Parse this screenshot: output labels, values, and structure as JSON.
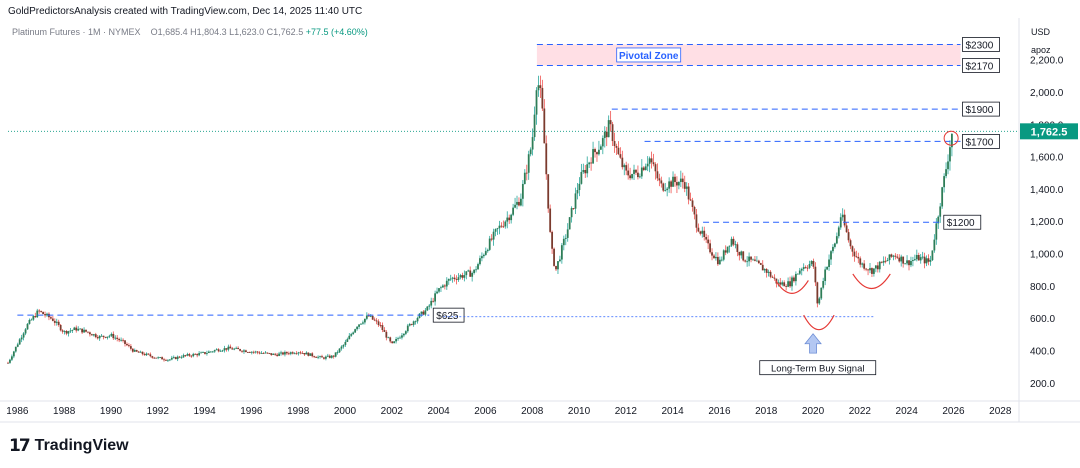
{
  "header": {
    "attribution": "GoldPredictorsAnalysis created with TradingView.com, Dec 14, 2025 11:40 UTC",
    "symbol": "Platinum Futures · 1M · NYMEX",
    "ohlc": "O1,685.4  H1,804.3  L1,623.0  C1,762.5",
    "change": "+77.5 (+4.60%)"
  },
  "price_scale": {
    "currency": "USD",
    "label": "apoz"
  },
  "footer": {
    "logo_mark": "17",
    "brand": "TradingView"
  },
  "colors": {
    "up": "#26a69a",
    "down": "#ef5350",
    "body_up": "#2e7d57",
    "body_down": "#7b3b2e",
    "level_line": "#2962ff",
    "zone_fill": "#ffd9e0",
    "current_price": "#089981",
    "arc": "#e53935"
  },
  "chart_data": {
    "type": "candlestick",
    "interval": "1M",
    "x_axis": {
      "tick_labels": [
        "1986",
        "1988",
        "1990",
        "1992",
        "1994",
        "1996",
        "1998",
        "2000",
        "2002",
        "2004",
        "2006",
        "2008",
        "2010",
        "2012",
        "2014",
        "2016",
        "2018",
        "2020",
        "2022",
        "2024",
        "2026",
        "2028"
      ],
      "range": [
        1985.6,
        2028.8
      ]
    },
    "y_axis": {
      "tick_labels": [
        "200.0",
        "400.0",
        "600.0",
        "800.0",
        "1,000.0",
        "1,200.0",
        "1,400.0",
        "1,600.0",
        "1,800.0",
        "2,000.0",
        "2,200.0"
      ],
      "range": [
        100,
        2340
      ],
      "scale": "linear",
      "position": "right"
    },
    "current_price": {
      "value": 1762.5,
      "label": "1,762.5"
    },
    "levels": [
      {
        "value": 2300,
        "label": "$2300",
        "x_start": 2008.2,
        "x_end": 2026.3
      },
      {
        "value": 2170,
        "label": "$2170",
        "x_start": 2008.2,
        "x_end": 2026.3
      },
      {
        "value": 1900,
        "label": "$1900",
        "x_start": 2011.4,
        "x_end": 2026.3
      },
      {
        "value": 1700,
        "label": "$1700",
        "x_start": 2012.8,
        "x_end": 2026.3
      },
      {
        "value": 1200,
        "label": "$1200",
        "x_start": 2015.3,
        "x_end": 2025.5
      },
      {
        "value": 625,
        "label": "$625",
        "x_start": 1986.0,
        "x_end": 2003.6
      }
    ],
    "support_line": {
      "value": 615,
      "x_start": 2004.2,
      "x_end": 2022.6
    },
    "zone": {
      "label": "Pivotal Zone",
      "from": 2170,
      "to": 2300,
      "x_start": 2008.2,
      "x_end": 2026.3
    },
    "annotations": [
      {
        "text": "Long-Term Buy Signal",
        "x": 2020.2,
        "y": 300
      }
    ],
    "arcs": [
      {
        "x_start": 2018.4,
        "x_end": 2019.8,
        "y_top": 840,
        "y_bottom": 760
      },
      {
        "x_start": 2019.6,
        "x_end": 2020.9,
        "y_top": 625,
        "y_bottom": 535
      },
      {
        "x_start": 2021.7,
        "x_end": 2023.3,
        "y_top": 880,
        "y_bottom": 790
      }
    ],
    "circle": {
      "x": 2025.9,
      "y": 1720
    },
    "arrow": {
      "x": 2020.0,
      "y_from": 390,
      "y_to": 510
    },
    "anchors": [
      [
        1985.6,
        330
      ],
      [
        1986.4,
        560
      ],
      [
        1986.9,
        650
      ],
      [
        1987.5,
        600
      ],
      [
        1988.0,
        520
      ],
      [
        1988.5,
        540
      ],
      [
        1989.0,
        520
      ],
      [
        1989.5,
        490
      ],
      [
        1990.0,
        500
      ],
      [
        1990.5,
        460
      ],
      [
        1991.0,
        400
      ],
      [
        1991.5,
        380
      ],
      [
        1992.0,
        360
      ],
      [
        1992.5,
        350
      ],
      [
        1993.0,
        370
      ],
      [
        1993.5,
        380
      ],
      [
        1994.0,
        390
      ],
      [
        1994.5,
        410
      ],
      [
        1995.0,
        420
      ],
      [
        1995.5,
        410
      ],
      [
        1996.0,
        400
      ],
      [
        1996.5,
        390
      ],
      [
        1997.0,
        380
      ],
      [
        1997.5,
        390
      ],
      [
        1998.0,
        400
      ],
      [
        1998.5,
        380
      ],
      [
        1999.0,
        360
      ],
      [
        1999.5,
        370
      ],
      [
        2000.0,
        450
      ],
      [
        2000.5,
        560
      ],
      [
        2001.0,
        620
      ],
      [
        2001.5,
        560
      ],
      [
        2002.0,
        440
      ],
      [
        2002.5,
        520
      ],
      [
        2003.0,
        600
      ],
      [
        2003.5,
        660
      ],
      [
        2004.0,
        780
      ],
      [
        2004.5,
        850
      ],
      [
        2005.0,
        870
      ],
      [
        2005.5,
        890
      ],
      [
        2006.0,
        1030
      ],
      [
        2006.5,
        1150
      ],
      [
        2007.0,
        1240
      ],
      [
        2007.5,
        1350
      ],
      [
        2008.0,
        1700
      ],
      [
        2008.2,
        2100
      ],
      [
        2008.4,
        1950
      ],
      [
        2008.6,
        1500
      ],
      [
        2008.8,
        1050
      ],
      [
        2009.0,
        900
      ],
      [
        2009.5,
        1150
      ],
      [
        2010.0,
        1450
      ],
      [
        2010.5,
        1600
      ],
      [
        2011.0,
        1700
      ],
      [
        2011.3,
        1800
      ],
      [
        2011.7,
        1600
      ],
      [
        2012.0,
        1500
      ],
      [
        2012.5,
        1500
      ],
      [
        2013.0,
        1600
      ],
      [
        2013.5,
        1420
      ],
      [
        2014.0,
        1450
      ],
      [
        2014.5,
        1450
      ],
      [
        2015.0,
        1200
      ],
      [
        2015.5,
        1050
      ],
      [
        2016.0,
        950
      ],
      [
        2016.5,
        1100
      ],
      [
        2017.0,
        980
      ],
      [
        2017.5,
        950
      ],
      [
        2018.0,
        900
      ],
      [
        2018.5,
        820
      ],
      [
        2019.0,
        820
      ],
      [
        2019.5,
        920
      ],
      [
        2020.0,
        950
      ],
      [
        2020.2,
        680
      ],
      [
        2020.5,
        900
      ],
      [
        2021.0,
        1100
      ],
      [
        2021.2,
        1250
      ],
      [
        2021.6,
        1050
      ],
      [
        2022.0,
        950
      ],
      [
        2022.5,
        900
      ],
      [
        2023.0,
        950
      ],
      [
        2023.5,
        1000
      ],
      [
        2024.0,
        950
      ],
      [
        2024.5,
        980
      ],
      [
        2025.0,
        950
      ],
      [
        2025.4,
        1300
      ],
      [
        2025.7,
        1550
      ],
      [
        2025.95,
        1762.5
      ]
    ]
  }
}
